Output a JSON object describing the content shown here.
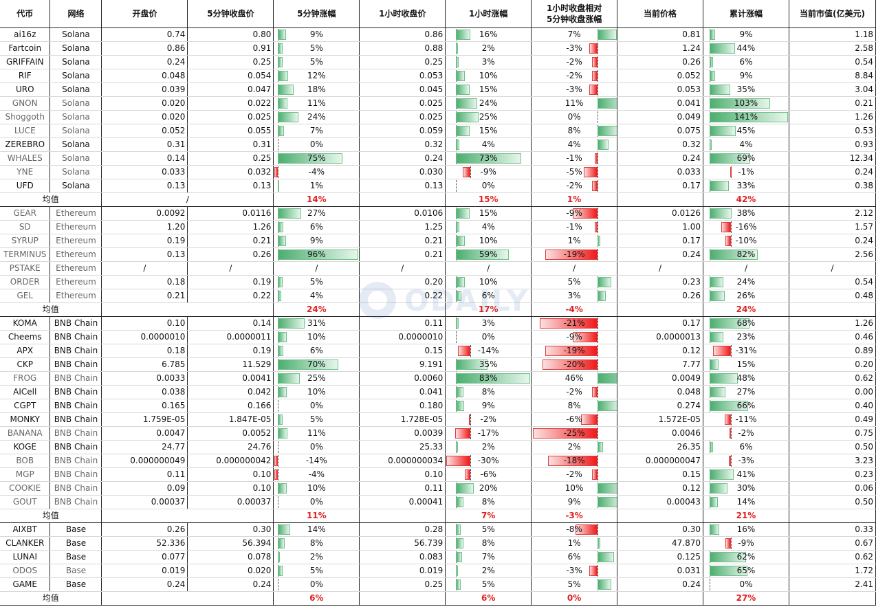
{
  "headers": [
    "代币",
    "网络",
    "开盘价",
    "5分钟收盘价",
    "5分钟涨幅",
    "1小时收盘价",
    "1小时涨幅",
    "1小时收盘相对\n5分钟收盘涨幅",
    "当前价格",
    "累计涨幅",
    "当前市值(亿美元)"
  ],
  "avg_label": "均值",
  "groups": [
    {
      "rows": [
        {
          "t": "ai16z",
          "n": "Solana",
          "o": "0.74",
          "c5": "0.80",
          "g5": "9%",
          "c1": "0.86",
          "g1": "16%",
          "g15": "7%",
          "p": "0.81",
          "gc": "9%",
          "m": "1.18",
          "v5": 9,
          "v1": 16,
          "v15": 7,
          "vc": 9
        },
        {
          "t": "Fartcoin",
          "n": "Solana",
          "o": "0.86",
          "c5": "0.91",
          "g5": "5%",
          "c1": "0.88",
          "g1": "2%",
          "g15": "-3%",
          "p": "1.24",
          "gc": "44%",
          "m": "2.58",
          "v5": 5,
          "v1": 2,
          "v15": -3,
          "vc": 44
        },
        {
          "t": "GRIFFAIN",
          "n": "Solana",
          "o": "0.24",
          "c5": "0.25",
          "g5": "5%",
          "c1": "0.25",
          "g1": "3%",
          "g15": "-2%",
          "p": "0.26",
          "gc": "6%",
          "m": "0.54",
          "v5": 5,
          "v1": 3,
          "v15": -2,
          "vc": 6
        },
        {
          "t": "RIF",
          "n": "Solana",
          "o": "0.048",
          "c5": "0.054",
          "g5": "12%",
          "c1": "0.053",
          "g1": "10%",
          "g15": "-2%",
          "p": "0.052",
          "gc": "9%",
          "m": "8.84",
          "v5": 12,
          "v1": 10,
          "v15": -2,
          "vc": 9
        },
        {
          "t": "URO",
          "n": "Solana",
          "o": "0.039",
          "c5": "0.047",
          "g5": "18%",
          "c1": "0.045",
          "g1": "15%",
          "g15": "-3%",
          "p": "0.053",
          "gc": "35%",
          "m": "3.04",
          "v5": 18,
          "v1": 15,
          "v15": -3,
          "vc": 35
        },
        {
          "t": "GNON",
          "n": "Solana",
          "gray": true,
          "o": "0.020",
          "c5": "0.022",
          "g5": "11%",
          "c1": "0.025",
          "g1": "24%",
          "g15": "11%",
          "p": "0.041",
          "gc": "103%",
          "m": "0.21",
          "v5": 11,
          "v1": 24,
          "v15": 11,
          "vc": 103
        },
        {
          "t": "Shoggoth",
          "n": "Solana",
          "gray": true,
          "o": "0.020",
          "c5": "0.025",
          "g5": "24%",
          "c1": "0.025",
          "g1": "25%",
          "g15": "0%",
          "p": "0.049",
          "gc": "141%",
          "m": "1.26",
          "v5": 24,
          "v1": 25,
          "v15": 0,
          "vc": 141
        },
        {
          "t": "LUCE",
          "n": "Solana",
          "gray": true,
          "o": "0.052",
          "c5": "0.055",
          "g5": "7%",
          "c1": "0.059",
          "g1": "15%",
          "g15": "8%",
          "p": "0.075",
          "gc": "45%",
          "m": "0.53",
          "v5": 7,
          "v1": 15,
          "v15": 8,
          "vc": 45
        },
        {
          "t": "ZEREBRO",
          "n": "Solana",
          "o": "0.31",
          "c5": "0.31",
          "g5": "0%",
          "c1": "0.32",
          "g1": "4%",
          "g15": "4%",
          "p": "0.32",
          "gc": "4%",
          "m": "0.93",
          "v5": 0,
          "v1": 4,
          "v15": 4,
          "vc": 4
        },
        {
          "t": "WHALES",
          "n": "Solana",
          "gray": true,
          "o": "0.14",
          "c5": "0.25",
          "g5": "75%",
          "c1": "0.24",
          "g1": "73%",
          "g15": "-1%",
          "p": "0.24",
          "gc": "69%",
          "m": "12.34",
          "v5": 75,
          "v1": 73,
          "v15": -1,
          "vc": 69
        },
        {
          "t": "YNE",
          "n": "Solana",
          "gray": true,
          "o": "0.033",
          "c5": "0.032",
          "g5": "-4%",
          "c1": "0.030",
          "g1": "-9%",
          "g15": "-5%",
          "p": "0.033",
          "gc": "-1%",
          "m": "0.24",
          "v5": -4,
          "v1": -9,
          "v15": -5,
          "vc": -1
        },
        {
          "t": "UFD",
          "n": "Solana",
          "o": "0.13",
          "c5": "0.13",
          "g5": "1%",
          "c1": "0.13",
          "g1": "0%",
          "g15": "-2%",
          "p": "0.17",
          "gc": "33%",
          "m": "0.38",
          "v5": 1,
          "v1": 0,
          "v15": -2,
          "vc": 33
        }
      ],
      "avg": {
        "sep": "/",
        "g5": "14%",
        "g1": "15%",
        "g15": "1%",
        "gc": "42%"
      }
    },
    {
      "rows": [
        {
          "t": "GEAR",
          "n": "Ethereum",
          "gray": true,
          "o": "0.0092",
          "c5": "0.0116",
          "g5": "27%",
          "c1": "0.0106",
          "g1": "15%",
          "g15": "-9%",
          "p": "0.0126",
          "gc": "38%",
          "m": "2.12",
          "v5": 27,
          "v1": 15,
          "v15": -9,
          "vc": 38
        },
        {
          "t": "SD",
          "n": "Ethereum",
          "gray": true,
          "o": "1.20",
          "c5": "1.26",
          "g5": "6%",
          "c1": "1.25",
          "g1": "4%",
          "g15": "-1%",
          "p": "1.00",
          "gc": "-16%",
          "m": "1.57",
          "v5": 6,
          "v1": 4,
          "v15": -1,
          "vc": -16
        },
        {
          "t": "SYRUP",
          "n": "Ethereum",
          "gray": true,
          "o": "0.19",
          "c5": "0.21",
          "g5": "9%",
          "c1": "0.21",
          "g1": "10%",
          "g15": "1%",
          "p": "0.17",
          "gc": "-10%",
          "m": "0.24",
          "v5": 9,
          "v1": 10,
          "v15": 1,
          "vc": -10
        },
        {
          "t": "TERMINUS",
          "n": "Ethereum",
          "gray": true,
          "o": "0.13",
          "c5": "0.26",
          "g5": "96%",
          "c1": "0.21",
          "g1": "59%",
          "g15": "-19%",
          "p": "0.24",
          "gc": "82%",
          "m": "2.56",
          "v5": 96,
          "v1": 59,
          "v15": -19,
          "vc": 82
        },
        {
          "t": "PSTAKE",
          "n": "Ethereum",
          "gray": true,
          "o": "/",
          "c5": "/",
          "g5": "/",
          "c1": "/",
          "g1": "/",
          "g15": "/",
          "p": "/",
          "gc": "/",
          "m": "/",
          "v5": 0,
          "v1": 0,
          "v15": 0,
          "vc": 0
        },
        {
          "t": "ORDER",
          "n": "Ethereum",
          "gray": true,
          "o": "0.18",
          "c5": "0.19",
          "g5": "5%",
          "c1": "0.20",
          "g1": "10%",
          "g15": "5%",
          "p": "0.23",
          "gc": "24%",
          "m": "0.54",
          "v5": 5,
          "v1": 10,
          "v15": 5,
          "vc": 24
        },
        {
          "t": "GEL",
          "n": "Ethereum",
          "gray": true,
          "o": "0.21",
          "c5": "0.22",
          "g5": "4%",
          "c1": "0.22",
          "g1": "6%",
          "g15": "3%",
          "p": "0.26",
          "gc": "26%",
          "m": "0.48",
          "v5": 4,
          "v1": 6,
          "v15": 3,
          "vc": 26
        }
      ],
      "avg": {
        "sep": "",
        "g5": "24%",
        "g1": "17%",
        "g15": "-4%",
        "gc": "24%"
      }
    },
    {
      "rows": [
        {
          "t": "KOMA",
          "n": "BNB Chain",
          "o": "0.10",
          "c5": "0.14",
          "g5": "31%",
          "c1": "0.11",
          "g1": "3%",
          "g15": "-21%",
          "p": "0.17",
          "gc": "68%",
          "m": "1.26",
          "v5": 31,
          "v1": 3,
          "v15": -21,
          "vc": 68
        },
        {
          "t": "Cheems",
          "n": "BNB Chain",
          "o": "0.0000010",
          "c5": "0.0000011",
          "g5": "10%",
          "c1": "0.0000010",
          "g1": "0%",
          "g15": "-9%",
          "p": "0.0000013",
          "gc": "23%",
          "m": "0.46",
          "v5": 10,
          "v1": 0,
          "v15": -9,
          "vc": 23
        },
        {
          "t": "APX",
          "n": "BNB Chain",
          "o": "0.18",
          "c5": "0.19",
          "g5": "6%",
          "c1": "0.15",
          "g1": "-14%",
          "g15": "-19%",
          "p": "0.12",
          "gc": "-31%",
          "m": "0.89",
          "v5": 6,
          "v1": -14,
          "v15": -19,
          "vc": -31
        },
        {
          "t": "CKP",
          "n": "BNB Chain",
          "o": "6.785",
          "c5": "11.529",
          "g5": "70%",
          "c1": "9.191",
          "g1": "35%",
          "g15": "-20%",
          "p": "7.77",
          "gc": "15%",
          "m": "0.20",
          "v5": 70,
          "v1": 35,
          "v15": -20,
          "vc": 15
        },
        {
          "t": "FROG",
          "n": "BNB Chain",
          "gray": true,
          "o": "0.0033",
          "c5": "0.0041",
          "g5": "25%",
          "c1": "0.0060",
          "g1": "83%",
          "g15": "46%",
          "p": "0.0049",
          "gc": "48%",
          "m": "0.62",
          "v5": 25,
          "v1": 83,
          "v15": 46,
          "vc": 48
        },
        {
          "t": "AICell",
          "n": "BNB Chain",
          "o": "0.038",
          "c5": "0.042",
          "g5": "10%",
          "c1": "0.041",
          "g1": "8%",
          "g15": "-2%",
          "p": "0.048",
          "gc": "27%",
          "m": "0.00",
          "v5": 10,
          "v1": 8,
          "v15": -2,
          "vc": 27
        },
        {
          "t": "CGPT",
          "n": "BNB Chain",
          "o": "0.165",
          "c5": "0.166",
          "g5": "0%",
          "c1": "0.180",
          "g1": "9%",
          "g15": "8%",
          "p": "0.274",
          "gc": "66%",
          "m": "0.40",
          "v5": 0,
          "v1": 9,
          "v15": 8,
          "vc": 66
        },
        {
          "t": "MONKY",
          "n": "BNB Chain",
          "o": "1.759E-05",
          "c5": "1.847E-05",
          "g5": "5%",
          "c1": "1.728E-05",
          "g1": "-2%",
          "g15": "-6%",
          "p": "1.572E-05",
          "gc": "-11%",
          "m": "0.49",
          "v5": 5,
          "v1": -2,
          "v15": -6,
          "vc": -11
        },
        {
          "t": "BANANA",
          "n": "BNB Chain",
          "gray": true,
          "o": "0.0047",
          "c5": "0.0052",
          "g5": "11%",
          "c1": "0.0039",
          "g1": "-17%",
          "g15": "-25%",
          "p": "0.0046",
          "gc": "-2%",
          "m": "0.75",
          "v5": 11,
          "v1": -17,
          "v15": -25,
          "vc": -2
        },
        {
          "t": "KOGE",
          "n": "BNB Chain",
          "o": "24.77",
          "c5": "24.76",
          "g5": "0%",
          "c1": "25.33",
          "g1": "2%",
          "g15": "2%",
          "p": "26.35",
          "gc": "6%",
          "m": "0.50",
          "v5": 0,
          "v1": 2,
          "v15": 2,
          "vc": 6
        },
        {
          "t": "BOB",
          "n": "BNB Chain",
          "gray": true,
          "o": "0.000000049",
          "c5": "0.000000042",
          "g5": "-14%",
          "c1": "0.000000034",
          "g1": "-30%",
          "g15": "-18%",
          "p": "0.000000047",
          "gc": "-3%",
          "m": "3.23",
          "v5": -14,
          "v1": -30,
          "v15": -18,
          "vc": -3
        },
        {
          "t": "MGP",
          "n": "BNB Chain",
          "gray": true,
          "o": "0.11",
          "c5": "0.10",
          "g5": "-4%",
          "c1": "0.10",
          "g1": "-6%",
          "g15": "-2%",
          "p": "0.15",
          "gc": "41%",
          "m": "0.23",
          "v5": -4,
          "v1": -6,
          "v15": -2,
          "vc": 41
        },
        {
          "t": "COOKIE",
          "n": "BNB Chain",
          "gray": true,
          "o": "0.09",
          "c5": "0.10",
          "g5": "10%",
          "c1": "0.11",
          "g1": "20%",
          "g15": "10%",
          "p": "0.12",
          "gc": "30%",
          "m": "0.06",
          "v5": 10,
          "v1": 20,
          "v15": 10,
          "vc": 30
        },
        {
          "t": "GOUT",
          "n": "BNB Chain",
          "gray": true,
          "o": "0.00037",
          "c5": "0.00037",
          "g5": "0%",
          "c1": "0.00041",
          "g1": "8%",
          "g15": "9%",
          "p": "0.00043",
          "gc": "14%",
          "m": "0.50",
          "v5": 0,
          "v1": 8,
          "v15": 9,
          "vc": 14
        }
      ],
      "avg": {
        "sep": "",
        "g5": "11%",
        "g1": "7%",
        "g15": "-3%",
        "gc": "21%"
      }
    },
    {
      "rows": [
        {
          "t": "AIXBT",
          "n": "Base",
          "o": "0.26",
          "c5": "0.30",
          "g5": "14%",
          "c1": "0.28",
          "g1": "5%",
          "g15": "-8%",
          "p": "0.30",
          "gc": "16%",
          "m": "0.33",
          "v5": 14,
          "v1": 5,
          "v15": -8,
          "vc": 16
        },
        {
          "t": "CLANKER",
          "n": "Base",
          "o": "52.336",
          "c5": "56.394",
          "g5": "8%",
          "c1": "56.739",
          "g1": "8%",
          "g15": "1%",
          "p": "47.870",
          "gc": "-9%",
          "m": "0.67",
          "v5": 8,
          "v1": 8,
          "v15": 1,
          "vc": -9
        },
        {
          "t": "LUNAI",
          "n": "Base",
          "o": "0.077",
          "c5": "0.078",
          "g5": "2%",
          "c1": "0.083",
          "g1": "7%",
          "g15": "6%",
          "p": "0.125",
          "gc": "62%",
          "m": "0.62",
          "v5": 2,
          "v1": 7,
          "v15": 6,
          "vc": 62
        },
        {
          "t": "ODOS",
          "n": "Base",
          "gray": true,
          "o": "0.019",
          "c5": "0.020",
          "g5": "5%",
          "c1": "0.019",
          "g1": "2%",
          "g15": "-3%",
          "p": "0.031",
          "gc": "65%",
          "m": "1.72",
          "v5": 5,
          "v1": 2,
          "v15": -3,
          "vc": 65
        },
        {
          "t": "GAME",
          "n": "Base",
          "o": "0.24",
          "c5": "0.24",
          "g5": "0%",
          "c1": "0.25",
          "g1": "5%",
          "g15": "5%",
          "p": "0.24",
          "gc": "0%",
          "m": "2.41",
          "v5": 0,
          "v1": 5,
          "v15": 5,
          "vc": 0
        }
      ],
      "avg": {
        "sep": "",
        "g5": "6%",
        "g1": "6%",
        "g15": "0%",
        "gc": "27%"
      }
    }
  ],
  "watermark": {
    "text": "ODAILY"
  }
}
